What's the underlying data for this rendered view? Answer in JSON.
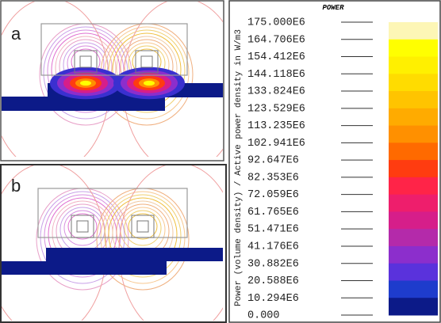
{
  "panels": [
    {
      "label": "a"
    },
    {
      "label": "b"
    }
  ],
  "legend": {
    "title": "POWER",
    "axis_label": "Power (volume density) / Active power density in W/m3",
    "ticks": [
      "175.000E6",
      "164.706E6",
      "154.412E6",
      "144.118E6",
      "133.824E6",
      "123.529E6",
      "113.235E6",
      "102.941E6",
      "92.647E6",
      "82.353E6",
      "72.059E6",
      "61.765E6",
      "51.471E6",
      "41.176E6",
      "30.882E6",
      "20.588E6",
      "10.294E6",
      "0.000"
    ],
    "colors": [
      "#fdf6b6",
      "#ffff00",
      "#fff000",
      "#ffdc00",
      "#ffc400",
      "#ffab00",
      "#ff9000",
      "#ff6a00",
      "#ff3c10",
      "#ff2448",
      "#ee1e6c",
      "#d61e8a",
      "#b42aaa",
      "#8c2ecc",
      "#5a32dc",
      "#1e3ccc",
      "#0c1a88"
    ]
  }
}
